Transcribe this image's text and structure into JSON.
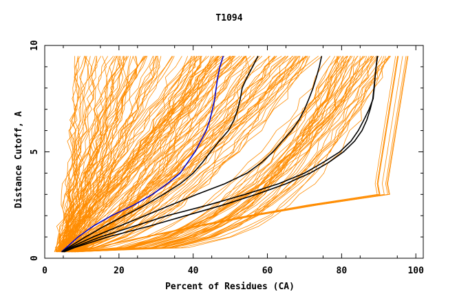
{
  "chart_data": {
    "type": "line",
    "title": "T1094",
    "xlabel": "Percent of Residues (CA)",
    "ylabel": "Distance Cutoff, A",
    "xlim": [
      0,
      102
    ],
    "ylim": [
      0,
      10
    ],
    "x_ticks": [
      0,
      20,
      40,
      60,
      80,
      100
    ],
    "y_ticks": [
      0,
      5,
      10
    ],
    "x_tick_labels": [
      "0",
      "20",
      "40",
      "60",
      "80",
      "100"
    ],
    "y_tick_labels": [
      "0",
      "5",
      "10"
    ],
    "grid": false,
    "legend": "none",
    "colors": {
      "background_series": "#ff8c00",
      "highlight_black": "#000000",
      "highlight_blue": "#0000cc",
      "axes": "#000000"
    },
    "y_samples": [
      0.3,
      0.5,
      1,
      1.5,
      2,
      2.5,
      3,
      3.5,
      4,
      4.5,
      5,
      5.5,
      6,
      6.5,
      7,
      7.5,
      8,
      8.5,
      9,
      9.5
    ],
    "highlight_series": [
      {
        "color": "#0000cc",
        "x": [
          4.5,
          5.8,
          9,
          13,
          18,
          24,
          29,
          33,
          36.5,
          38.5,
          40.5,
          42,
          43.5,
          44.5,
          45.2,
          45.8,
          46.2,
          46.6,
          47.2,
          48.1
        ]
      },
      {
        "color": "#000000",
        "x": [
          4.6,
          6.3,
          11,
          16,
          21.5,
          27,
          32,
          36.5,
          40,
          42.5,
          44.7,
          47,
          49.5,
          51,
          52,
          52.7,
          53.2,
          54.5,
          56,
          57.5
        ]
      },
      {
        "color": "#000000",
        "x": [
          4.8,
          6.8,
          13,
          20,
          27,
          34,
          41,
          48.5,
          54.5,
          58.5,
          61.5,
          64,
          66.5,
          68.5,
          70,
          71.2,
          72.3,
          73.2,
          74,
          74.6
        ]
      },
      {
        "color": "#000000",
        "x": [
          5,
          7.5,
          15,
          24,
          33,
          44,
          54,
          63,
          70,
          75,
          79.5,
          82.5,
          84.5,
          86,
          87.4,
          88.5,
          88.8,
          89,
          89.3,
          89.6
        ]
      },
      {
        "color": "#000000",
        "x": [
          5.2,
          8,
          17,
          28,
          38,
          48,
          57,
          65,
          71.5,
          76.5,
          80.5,
          83.5,
          85.5,
          86.8,
          87.7,
          88.4,
          88.7,
          89,
          89.3,
          89.7
        ]
      }
    ]
  }
}
